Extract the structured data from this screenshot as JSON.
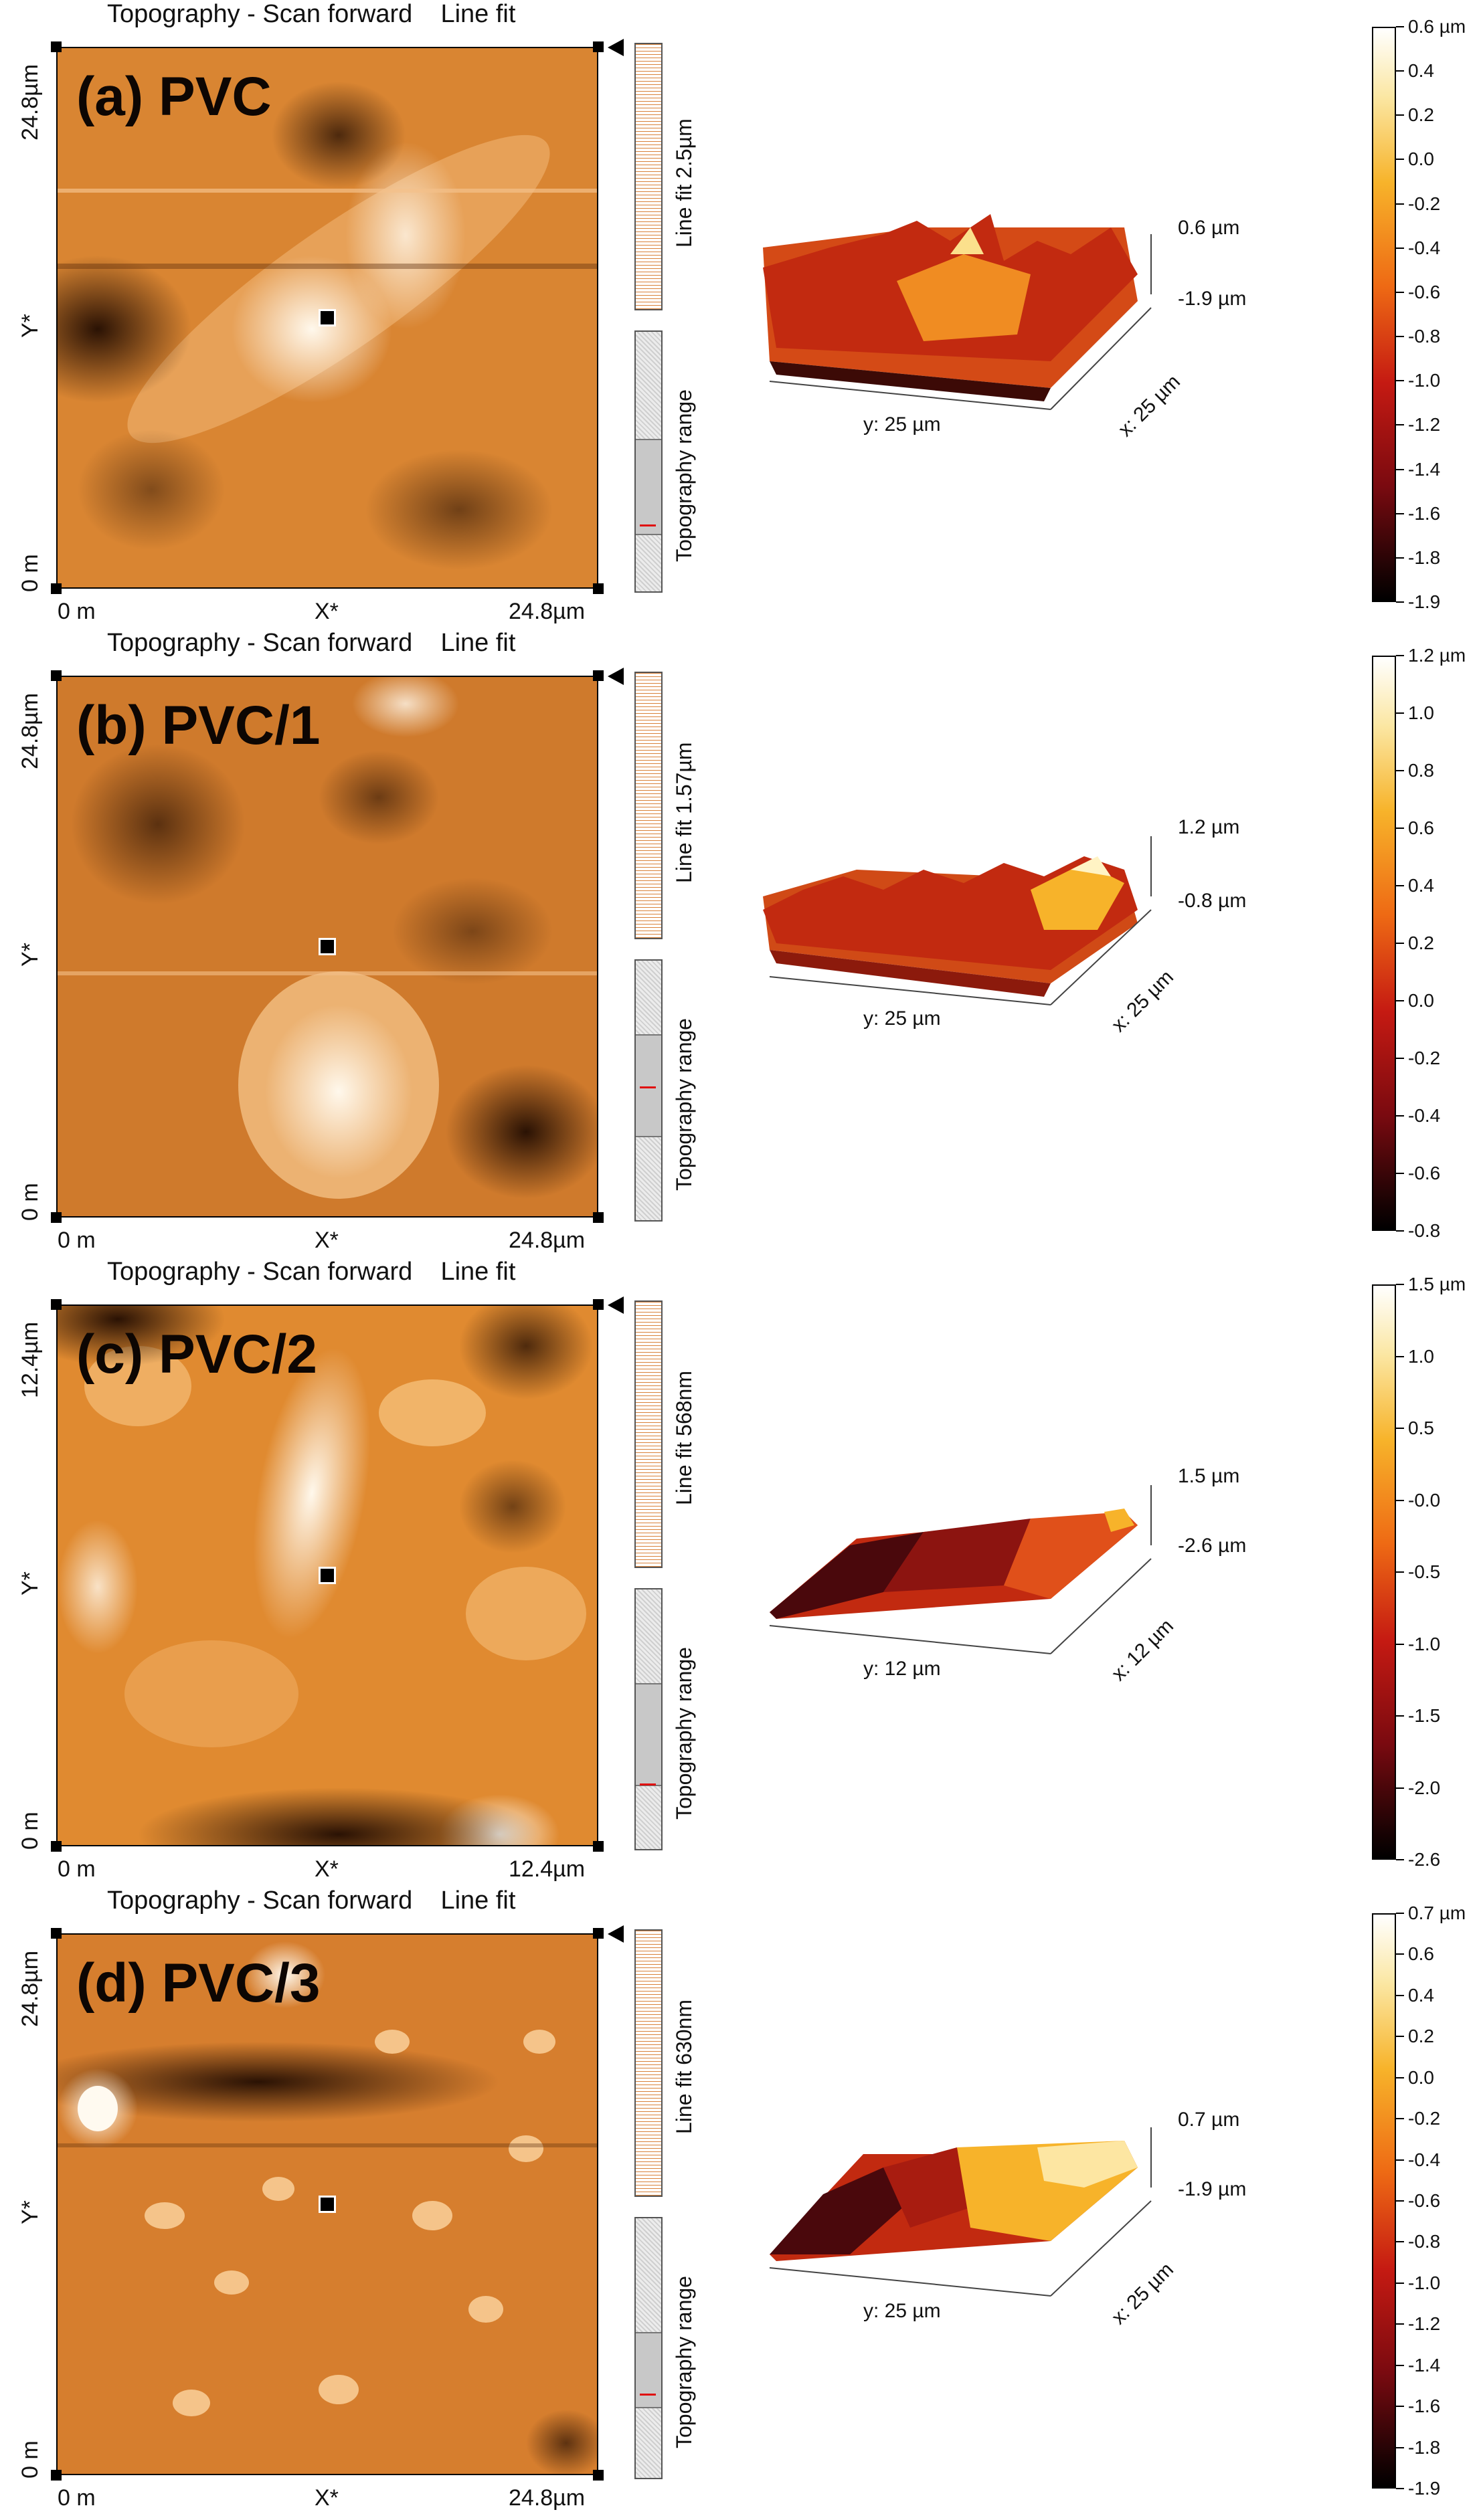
{
  "colors": {
    "afm_highlight": "#fff8ec",
    "afm_mid": "#e08a30",
    "afm_dark": "#2a1204",
    "linefit_stripe": "#d9823a",
    "range_marker": "#e01010",
    "surface_gradient": [
      "#1c0304",
      "#7a0a10",
      "#c51a12",
      "#ee6a14",
      "#f7b32a",
      "#fbe7a3",
      "#ffffff"
    ]
  },
  "panels": [
    {
      "title": "Topography - Scan forward    Line fit",
      "label": "(a) PVC",
      "y_top": "24.8µm",
      "y_bottom": "0 m",
      "y_axis": "Y*",
      "x_left": "0 m",
      "x_center": "X*",
      "x_right": "24.8µm",
      "linefit": "Line fit 2.5µm",
      "range": "Topography range",
      "z_max": "0.6 µm",
      "z_min": "-1.9 µm",
      "x_len": "x: 25 µm",
      "y_len": "y: 25 µm",
      "scale_unit": "µm",
      "scale_ticks": [
        "0.6",
        "0.4",
        "0.2",
        "0.0",
        "-0.2",
        "-0.4",
        "-0.6",
        "-0.8",
        "-1.0",
        "-1.2",
        "-1.4",
        "-1.6",
        "-1.8",
        "-1.9"
      ]
    },
    {
      "title": "Topography - Scan forward    Line fit",
      "label": "(b) PVC/1",
      "y_top": "24.8µm",
      "y_bottom": "0 m",
      "y_axis": "Y*",
      "x_left": "0 m",
      "x_center": "X*",
      "x_right": "24.8µm",
      "linefit": "Line fit 1.57µm",
      "range": "Topography range",
      "z_max": "1.2 µm",
      "z_min": "-0.8 µm",
      "x_len": "x: 25 µm",
      "y_len": "y: 25 µm",
      "scale_unit": "µm",
      "scale_ticks": [
        "1.2",
        "1.0",
        "0.8",
        "0.6",
        "0.4",
        "0.2",
        "0.0",
        "-0.2",
        "-0.4",
        "-0.6",
        "-0.8"
      ]
    },
    {
      "title": "Topography - Scan forward    Line fit",
      "label": "(c) PVC/2",
      "y_top": "12.4µm",
      "y_bottom": "0 m",
      "y_axis": "Y*",
      "x_left": "0 m",
      "x_center": "X*",
      "x_right": "12.4µm",
      "linefit": "Line fit 568nm",
      "range": "Topography range",
      "z_max": "1.5 µm",
      "z_min": "-2.6 µm",
      "x_len": "x: 12 µm",
      "y_len": "y: 12 µm",
      "scale_unit": "µm",
      "scale_ticks": [
        "1.5",
        "1.0",
        "0.5",
        "-0.0",
        "-0.5",
        "-1.0",
        "-1.5",
        "-2.0",
        "-2.6"
      ]
    },
    {
      "title": "Topography - Scan forward    Line fit",
      "label": "(d) PVC/3",
      "y_top": "24.8µm",
      "y_bottom": "0 m",
      "y_axis": "Y*",
      "x_left": "0 m",
      "x_center": "X*",
      "x_right": "24.8µm",
      "linefit": "Line fit 630nm",
      "range": "Topography range",
      "z_max": "0.7 µm",
      "z_min": "-1.9 µm",
      "x_len": "x: 25 µm",
      "y_len": "y: 25 µm",
      "scale_unit": "µm",
      "scale_ticks": [
        "0.7",
        "0.6",
        "0.4",
        "0.2",
        "0.0",
        "-0.2",
        "-0.4",
        "-0.6",
        "-0.8",
        "-1.0",
        "-1.2",
        "-1.4",
        "-1.6",
        "-1.8",
        "-1.9"
      ]
    }
  ]
}
